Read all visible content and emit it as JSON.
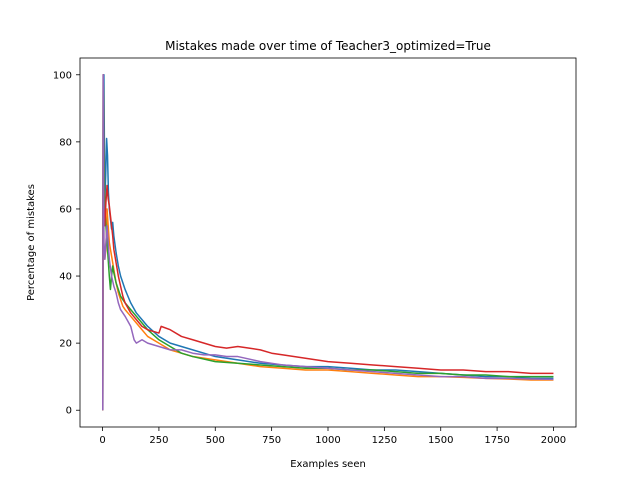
{
  "chart_data": {
    "type": "line",
    "title": "Mistakes made over time of Teacher3_optimized=True",
    "xlabel": "Examples seen",
    "ylabel": "Percentage of mistakes",
    "xlim": [
      -100,
      2100
    ],
    "ylim": [
      -5,
      105
    ],
    "xticks": [
      0,
      250,
      500,
      750,
      1000,
      1250,
      1500,
      1750,
      2000
    ],
    "yticks": [
      0,
      20,
      40,
      60,
      80,
      100
    ],
    "grid": false,
    "legend": "none",
    "series": [
      {
        "color": "#1f77b4",
        "x": [
          1,
          3,
          6,
          10,
          14,
          18,
          22,
          26,
          30,
          35,
          40,
          45,
          50,
          60,
          70,
          80,
          90,
          100,
          125,
          150,
          175,
          200,
          250,
          300,
          350,
          400,
          500,
          600,
          700,
          800,
          900,
          1000,
          1100,
          1200,
          1300,
          1400,
          1500,
          1600,
          1700,
          1800,
          1900,
          2000
        ],
        "y": [
          0,
          100,
          100,
          62,
          70,
          81,
          76,
          65,
          60,
          57,
          54,
          56,
          52,
          47,
          43,
          40,
          38,
          36,
          32,
          29,
          27,
          25,
          22,
          20,
          19,
          18,
          16,
          15,
          14,
          13.5,
          13,
          13,
          12.5,
          12,
          12,
          11.5,
          11,
          10.5,
          10,
          10,
          9.5,
          9.5
        ]
      },
      {
        "color": "#ff7f0e",
        "x": [
          1,
          3,
          6,
          10,
          15,
          20,
          25,
          30,
          40,
          50,
          60,
          70,
          80,
          90,
          100,
          125,
          150,
          175,
          200,
          250,
          300,
          350,
          400,
          500,
          600,
          700,
          800,
          900,
          1000,
          1100,
          1200,
          1300,
          1400,
          1500,
          1600,
          1700,
          1800,
          1900,
          2000
        ],
        "y": [
          0,
          100,
          50,
          45,
          48,
          60,
          55,
          50,
          46,
          42,
          38,
          35,
          33,
          31,
          30,
          28,
          26,
          24,
          22,
          20,
          18,
          17,
          16,
          15,
          14,
          13,
          12.5,
          12,
          12,
          11.5,
          11,
          10.5,
          10,
          10,
          9.8,
          9.5,
          9.3,
          9,
          9
        ]
      },
      {
        "color": "#2ca02c",
        "x": [
          1,
          3,
          6,
          10,
          15,
          20,
          25,
          30,
          35,
          40,
          45,
          50,
          60,
          70,
          80,
          90,
          100,
          125,
          150,
          175,
          200,
          250,
          300,
          350,
          400,
          500,
          600,
          700,
          800,
          900,
          1000,
          1100,
          1200,
          1300,
          1400,
          1500,
          1600,
          1700,
          1800,
          1900,
          2000
        ],
        "y": [
          0,
          100,
          80,
          60,
          55,
          50,
          45,
          40,
          36,
          40,
          43,
          41,
          38,
          36,
          34,
          33,
          32,
          30,
          28,
          26,
          24,
          21,
          19,
          17,
          16,
          14.5,
          14,
          13.5,
          13,
          12.5,
          12.5,
          12,
          12,
          11.5,
          11,
          11,
          10.5,
          10.5,
          10,
          10,
          10
        ]
      },
      {
        "color": "#d62728",
        "x": [
          1,
          3,
          6,
          10,
          15,
          20,
          25,
          30,
          35,
          40,
          45,
          50,
          60,
          70,
          80,
          90,
          100,
          125,
          150,
          175,
          200,
          250,
          260,
          300,
          350,
          400,
          450,
          500,
          550,
          600,
          650,
          700,
          750,
          800,
          900,
          1000,
          1100,
          1200,
          1300,
          1400,
          1500,
          1600,
          1700,
          1800,
          1900,
          2000
        ],
        "y": [
          0,
          100,
          60,
          55,
          62,
          67,
          63,
          61,
          58,
          55,
          52,
          48,
          44,
          40,
          37,
          34,
          32,
          29,
          27,
          25,
          24,
          23,
          25,
          24,
          22,
          21,
          20,
          19,
          18.5,
          19,
          18.5,
          18,
          17,
          16.5,
          15.5,
          14.5,
          14,
          13.5,
          13,
          12.5,
          12,
          12,
          11.5,
          11.5,
          11,
          11
        ]
      },
      {
        "color": "#9467bd",
        "x": [
          1,
          3,
          6,
          10,
          15,
          20,
          25,
          30,
          40,
          50,
          60,
          70,
          80,
          90,
          100,
          125,
          140,
          150,
          175,
          200,
          250,
          300,
          350,
          400,
          450,
          500,
          550,
          600,
          700,
          800,
          900,
          1000,
          1100,
          1200,
          1300,
          1400,
          1500,
          1600,
          1700,
          1800,
          1900,
          2000
        ],
        "y": [
          0,
          100,
          50,
          45,
          50,
          55,
          50,
          45,
          40,
          37,
          35,
          32,
          30,
          29,
          28,
          25,
          21,
          20,
          21,
          20,
          19,
          18,
          18,
          17,
          16.5,
          16.5,
          16,
          16,
          14.5,
          13.5,
          13,
          12.5,
          12,
          11.5,
          11,
          10.5,
          10,
          10,
          9.5,
          9.5,
          9.3,
          9.2
        ]
      }
    ]
  }
}
